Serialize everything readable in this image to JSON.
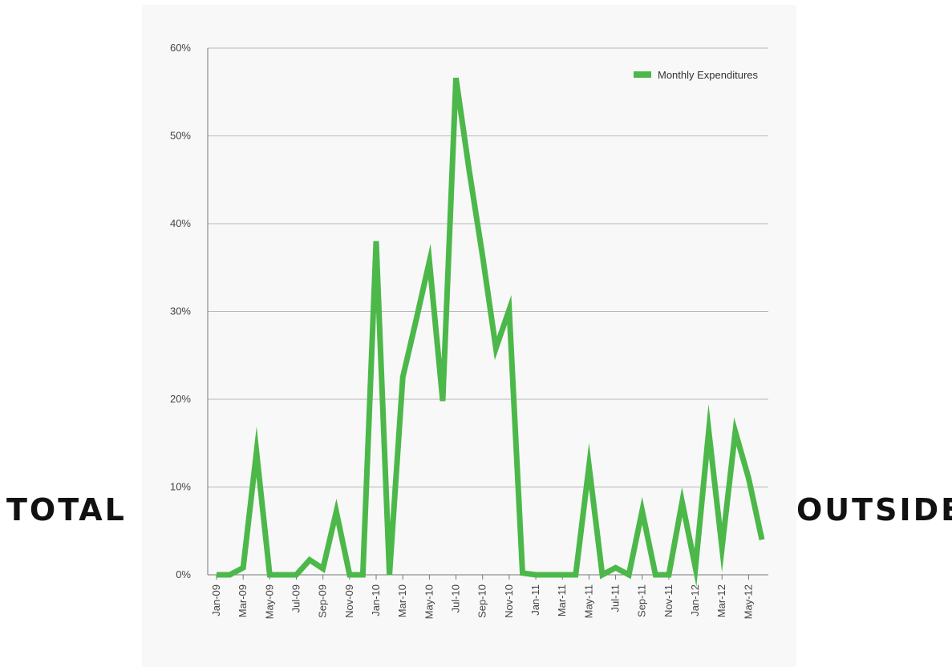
{
  "labels": {
    "left": "TOTAL",
    "right": "OUTSIDE"
  },
  "colors": {
    "series": "#4cb84a",
    "grid": "#b8b8b8",
    "axis": "#777777",
    "panel": "#f8f8f8"
  },
  "chart_data": {
    "type": "line",
    "title": "",
    "xlabel": "",
    "ylabel": "",
    "ylim": [
      0,
      60
    ],
    "y_ticks": [
      "0%",
      "10%",
      "20%",
      "30%",
      "40%",
      "50%",
      "60%"
    ],
    "y_tick_values": [
      0,
      10,
      20,
      30,
      40,
      50,
      60
    ],
    "grid": "horizontal",
    "legend_position": "top-right",
    "x": [
      "Jan-09",
      "Feb-09",
      "Mar-09",
      "Apr-09",
      "May-09",
      "Jun-09",
      "Jul-09",
      "Aug-09",
      "Sep-09",
      "Oct-09",
      "Nov-09",
      "Dec-09",
      "Jan-10",
      "Feb-10",
      "Mar-10",
      "Apr-10",
      "May-10",
      "Jun-10",
      "Jul-10",
      "Aug-10",
      "Sep-10",
      "Oct-10",
      "Nov-10",
      "Dec-10",
      "Jan-11",
      "Feb-11",
      "Mar-11",
      "Apr-11",
      "May-11",
      "Jun-11",
      "Jul-11",
      "Aug-11",
      "Sep-11",
      "Oct-11",
      "Nov-11",
      "Dec-11",
      "Jan-12",
      "Feb-12",
      "Mar-12",
      "Apr-12",
      "May-12",
      "Jun-12"
    ],
    "x_tick_labels": [
      "Jan-09",
      "Mar-09",
      "May-09",
      "Jul-09",
      "Sep-09",
      "Nov-09",
      "Jan-10",
      "Mar-10",
      "May-10",
      "Jul-10",
      "Sep-10",
      "Nov-10",
      "Jan-11",
      "Mar-11",
      "May-11",
      "Jul-11",
      "Sep-11",
      "Nov-11",
      "Jan-12",
      "Mar-12",
      "May-12"
    ],
    "series": [
      {
        "name": "Monthly Expenditures",
        "values": [
          0,
          0,
          0.8,
          14,
          0,
          0,
          0,
          1.7,
          0.7,
          7.2,
          0,
          0,
          38,
          0,
          22.5,
          29,
          35.7,
          19.8,
          56.6,
          46,
          36.3,
          25.8,
          30.2,
          0.2,
          0,
          0,
          0,
          0,
          12.4,
          0,
          0.8,
          0,
          7.3,
          0,
          0,
          8.3,
          0.8,
          16.4,
          3.1,
          16.3,
          11,
          4
        ]
      }
    ]
  }
}
